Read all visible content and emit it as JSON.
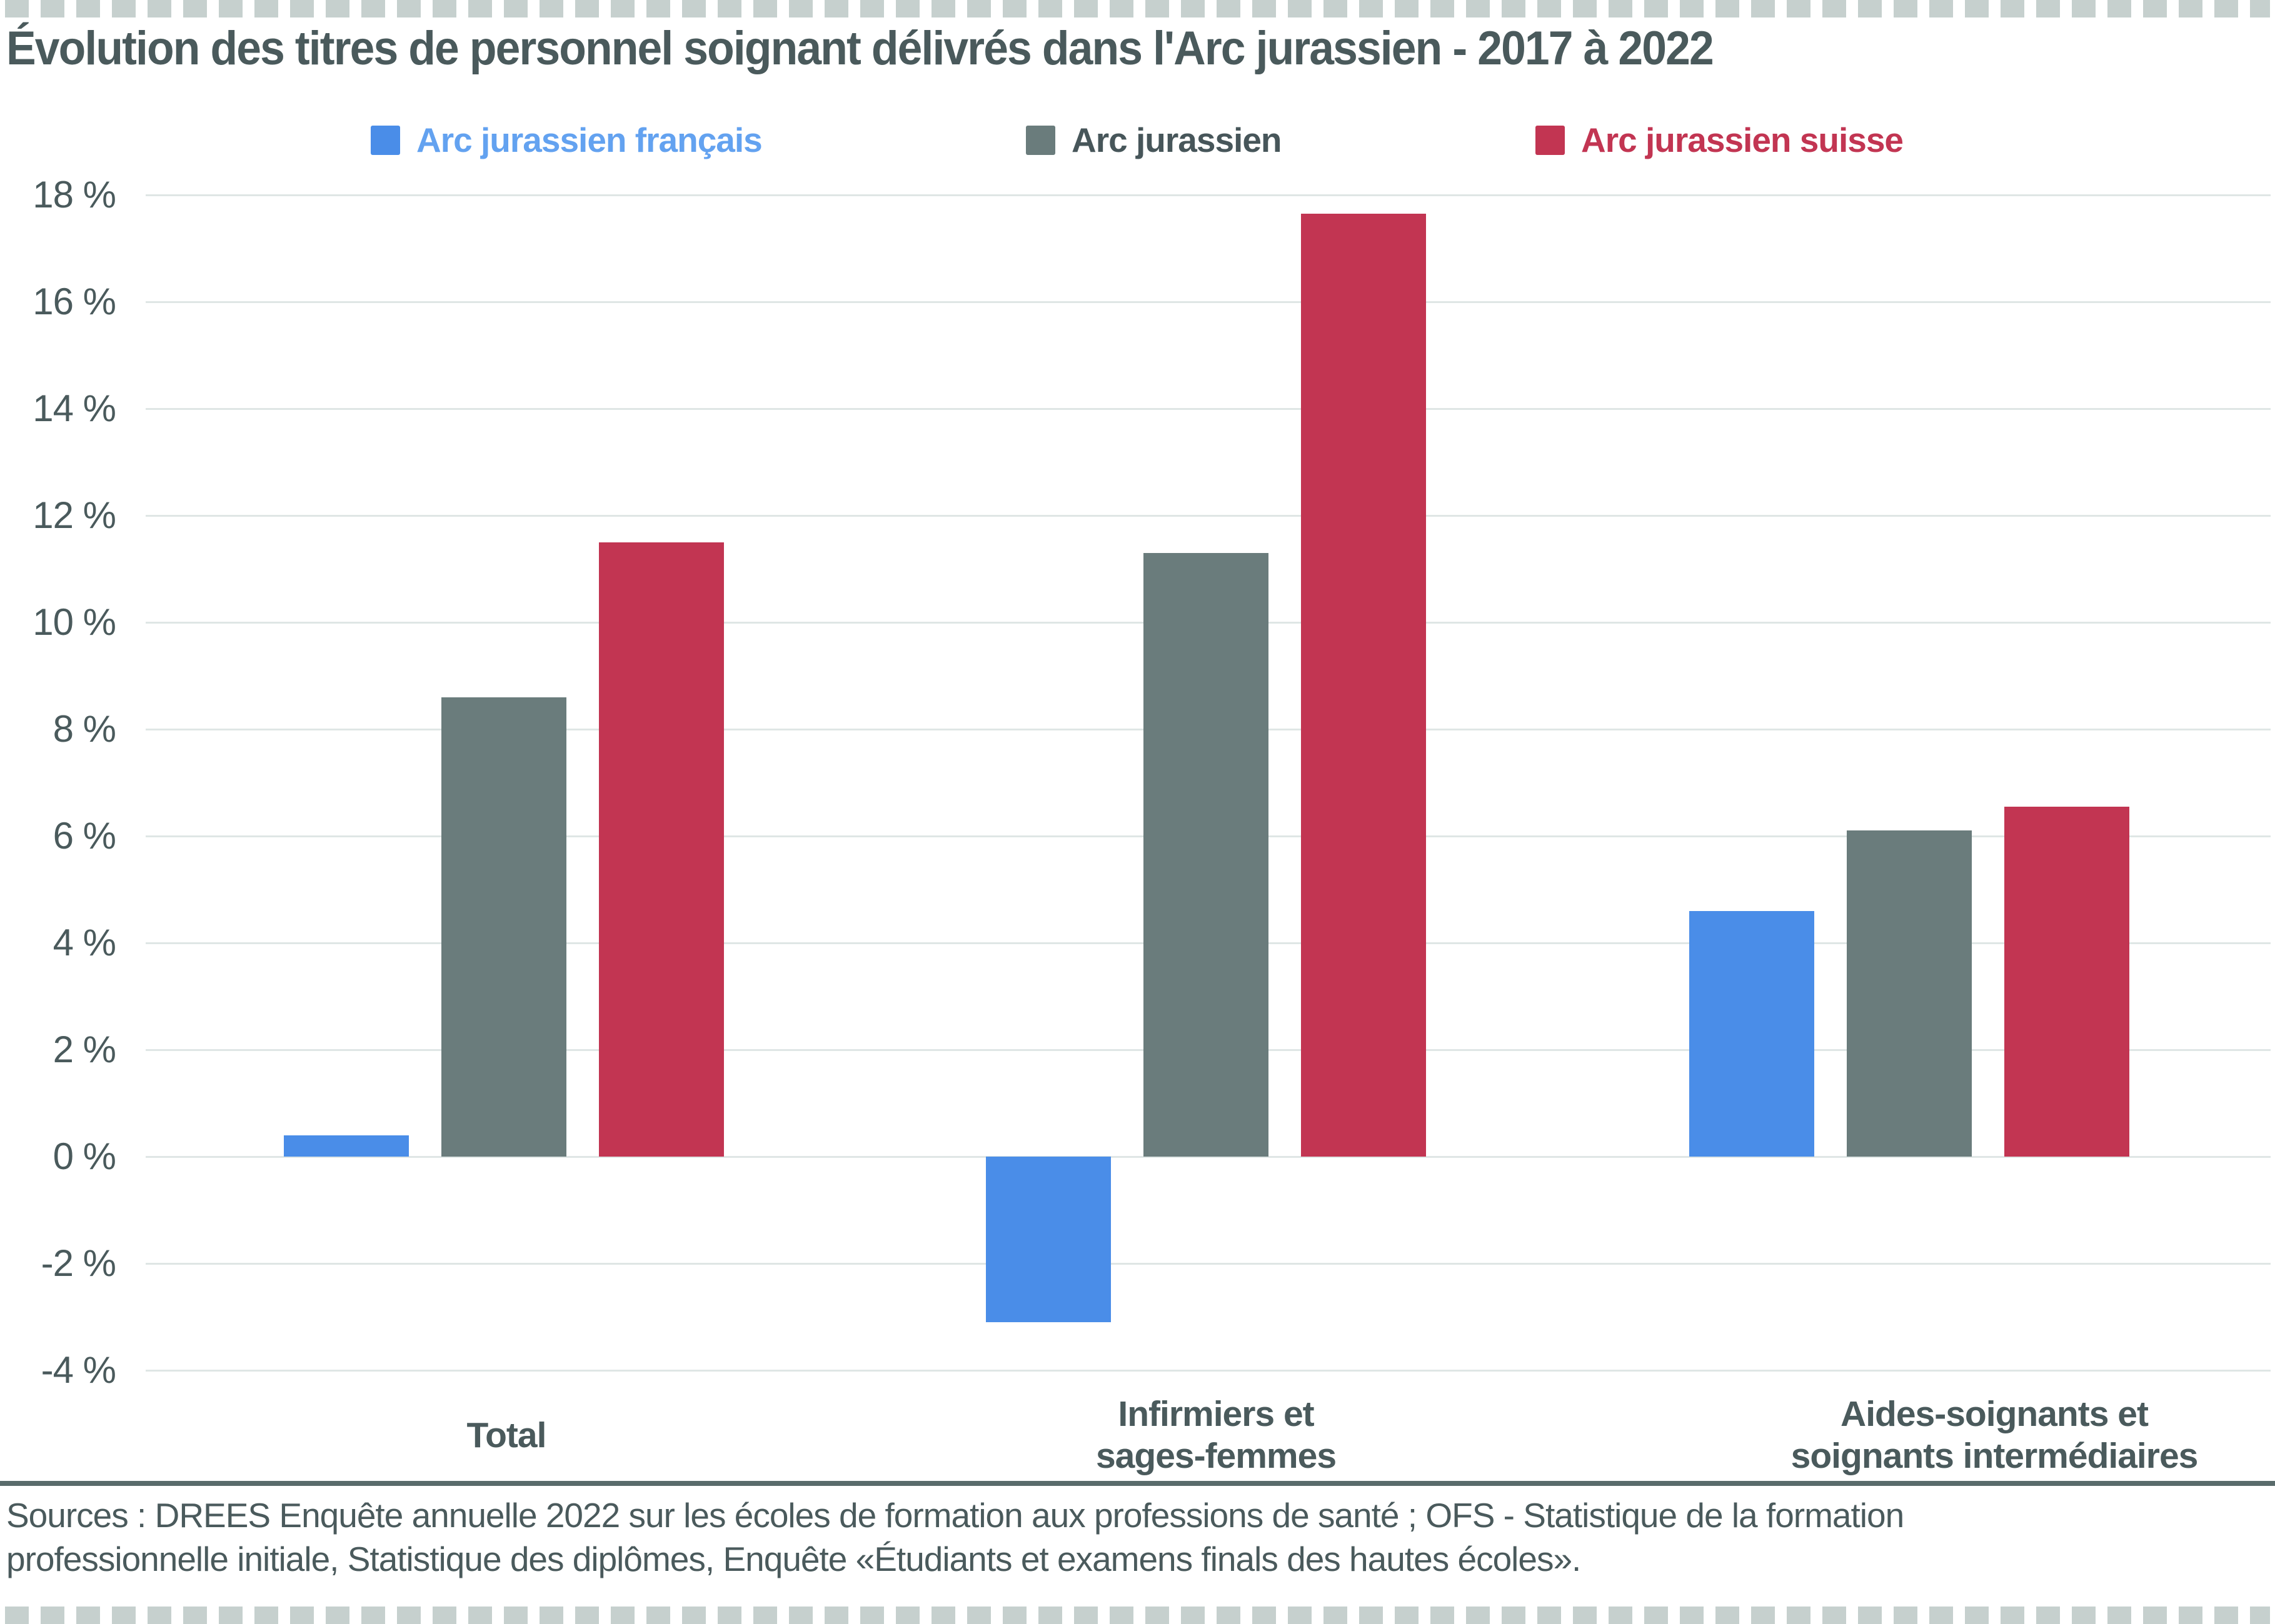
{
  "title": "Évolution des titres de personnel soignant délivrés dans l'Arc jurassien - 2017 à 2022",
  "legend": {
    "items": [
      {
        "label": "Arc jurassien français",
        "swatch_color": "#4a8de8",
        "text_color": "#63a2f0"
      },
      {
        "label": "Arc jurassien",
        "swatch_color": "#6a7c7c",
        "text_color": "#47565a"
      },
      {
        "label": "Arc jurassien suisse",
        "swatch_color": "#c23552",
        "text_color": "#c23552"
      }
    ]
  },
  "chart_data": {
    "type": "bar",
    "title": "Évolution des titres de personnel soignant délivrés dans l'Arc jurassien - 2017 à 2022",
    "categories": [
      "Total",
      "Infirmiers et sages-femmes",
      "Aides-soignants et soignants intermédiaires"
    ],
    "category_lines": [
      [
        "Total"
      ],
      [
        "Infirmiers et",
        "sages-femmes"
      ],
      [
        "Aides-soignants et",
        "soignants intermédiaires"
      ]
    ],
    "series": [
      {
        "name": "Arc jurassien français",
        "color": "#4a8de8",
        "values": [
          0.4,
          -3.1,
          4.6
        ]
      },
      {
        "name": "Arc jurassien",
        "color": "#6a7c7c",
        "values": [
          8.6,
          11.3,
          6.1
        ]
      },
      {
        "name": "Arc jurassien suisse",
        "color": "#c23552",
        "values": [
          11.5,
          17.65,
          6.55
        ]
      }
    ],
    "ylim": [
      -4,
      18
    ],
    "yticks": [
      18,
      16,
      14,
      12,
      10,
      8,
      6,
      4,
      2,
      0,
      -2,
      -4
    ],
    "ytick_suffix": " %",
    "xlabel": "",
    "ylabel": "",
    "grid": true,
    "legend_position": "top"
  },
  "footer": {
    "sources": [
      "Sources : DREES Enquête annuelle 2022 sur les écoles de formation aux professions de santé ; OFS - Statistique de la formation",
      "professionnelle initiale, Statistique des diplômes, Enquête «Étudiants et examens finals des hautes écoles»."
    ]
  },
  "colors": {
    "text": "#4a5a5c",
    "gridline": "#dfe6e5",
    "separator_line": "#596b6b",
    "dashed_border": "#c6d0ce",
    "background": "#ffffff"
  }
}
